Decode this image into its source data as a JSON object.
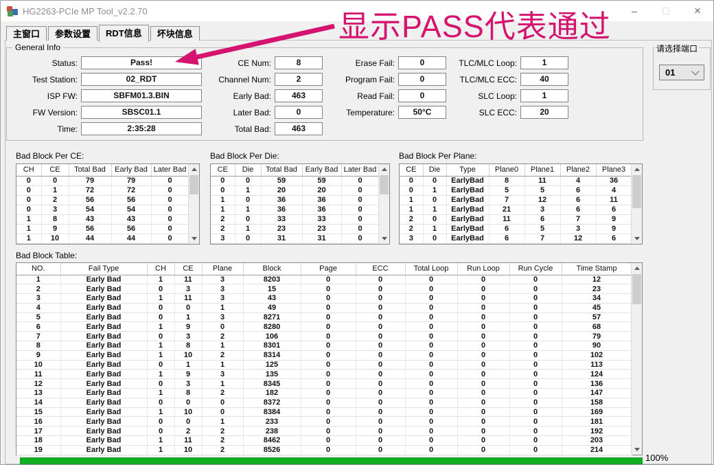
{
  "window": {
    "title": "HG2263-PCIe MP Tool_v2.2.70"
  },
  "icons": {
    "minimize": "–",
    "close": "×",
    "app": "colored-cubes",
    "combo_chevron": "chevron-down",
    "scroll_up": "triangle-up",
    "scroll_down": "triangle-down"
  },
  "tabs": {
    "items": [
      "主窗口",
      "参数设置",
      "RDT信息",
      "坏块信息"
    ],
    "active": "RDT信息"
  },
  "annotation": {
    "text": "显示PASS代表通过",
    "color": "#d4146e"
  },
  "general_info": {
    "title": "General Info",
    "col1": [
      {
        "label": "Status:",
        "value": "Pass!"
      },
      {
        "label": "Test Station:",
        "value": "02_RDT"
      },
      {
        "label": "ISP FW:",
        "value": "SBFM01.3.BIN"
      },
      {
        "label": "FW Version:",
        "value": "SBSC01.1"
      },
      {
        "label": "Time:",
        "value": "2:35:28"
      }
    ],
    "col2": [
      {
        "label": "CE Num:",
        "value": "8"
      },
      {
        "label": "Channel Num:",
        "value": "2"
      },
      {
        "label": "Early Bad:",
        "value": "463"
      },
      {
        "label": "Later Bad:",
        "value": "0"
      },
      {
        "label": "Total Bad:",
        "value": "463"
      }
    ],
    "col3": [
      {
        "label": "Erase Fail:",
        "value": "0"
      },
      {
        "label": "Program Fail:",
        "value": "0"
      },
      {
        "label": "Read Fail:",
        "value": "0"
      },
      {
        "label": "Temperature:",
        "value": "50°C"
      }
    ],
    "col4": [
      {
        "label": "TLC/MLC Loop:",
        "value": "1"
      },
      {
        "label": "TLC/MLC ECC:",
        "value": "40"
      },
      {
        "label": "SLC Loop:",
        "value": "1"
      },
      {
        "label": "SLC ECC:",
        "value": "20"
      }
    ]
  },
  "port_selector": {
    "title": "请选择端口",
    "selected": "01"
  },
  "tables": {
    "per_ce": {
      "title": "Bad Block Per CE:",
      "headers": [
        "CH",
        "CE",
        "Total Bad",
        "Early Bad",
        "Later Bad"
      ],
      "rows": [
        [
          "0",
          "0",
          "79",
          "79",
          "0"
        ],
        [
          "0",
          "1",
          "72",
          "72",
          "0"
        ],
        [
          "0",
          "2",
          "56",
          "56",
          "0"
        ],
        [
          "0",
          "3",
          "54",
          "54",
          "0"
        ],
        [
          "1",
          "8",
          "43",
          "43",
          "0"
        ],
        [
          "1",
          "9",
          "56",
          "56",
          "0"
        ],
        [
          "1",
          "10",
          "44",
          "44",
          "0"
        ]
      ]
    },
    "per_die": {
      "title": "Bad Block Per Die:",
      "headers": [
        "CE",
        "Die",
        "Total Bad",
        "Early Bad",
        "Later Bad"
      ],
      "rows": [
        [
          "0",
          "0",
          "59",
          "59",
          "0"
        ],
        [
          "0",
          "1",
          "20",
          "20",
          "0"
        ],
        [
          "1",
          "0",
          "36",
          "36",
          "0"
        ],
        [
          "1",
          "1",
          "36",
          "36",
          "0"
        ],
        [
          "2",
          "0",
          "33",
          "33",
          "0"
        ],
        [
          "2",
          "1",
          "23",
          "23",
          "0"
        ],
        [
          "3",
          "0",
          "31",
          "31",
          "0"
        ]
      ]
    },
    "per_plane": {
      "title": "Bad Block Per Plane:",
      "headers": [
        "CE",
        "Die",
        "Type",
        "Plane0",
        "Plane1",
        "Plane2",
        "Plane3"
      ],
      "rows": [
        [
          "0",
          "0",
          "EarlyBad",
          "8",
          "11",
          "4",
          "36"
        ],
        [
          "0",
          "1",
          "EarlyBad",
          "5",
          "5",
          "6",
          "4"
        ],
        [
          "1",
          "0",
          "EarlyBad",
          "7",
          "12",
          "6",
          "11"
        ],
        [
          "1",
          "1",
          "EarlyBad",
          "21",
          "3",
          "6",
          "6"
        ],
        [
          "2",
          "0",
          "EarlyBad",
          "11",
          "6",
          "7",
          "9"
        ],
        [
          "2",
          "1",
          "EarlyBad",
          "6",
          "5",
          "3",
          "9"
        ],
        [
          "3",
          "0",
          "EarlyBad",
          "6",
          "7",
          "12",
          "6"
        ]
      ]
    },
    "bad_block": {
      "title": "Bad Block Table:",
      "headers": [
        "NO.",
        "Fail Type",
        "CH",
        "CE",
        "Plane",
        "Block",
        "Page",
        "ECC",
        "Total Loop",
        "Run Loop",
        "Run Cycle",
        "Time Stamp"
      ],
      "rows": [
        [
          "1",
          "Early Bad",
          "1",
          "11",
          "3",
          "8203",
          "0",
          "0",
          "0",
          "0",
          "0",
          "12"
        ],
        [
          "2",
          "Early Bad",
          "0",
          "3",
          "3",
          "15",
          "0",
          "0",
          "0",
          "0",
          "0",
          "23"
        ],
        [
          "3",
          "Early Bad",
          "1",
          "11",
          "3",
          "43",
          "0",
          "0",
          "0",
          "0",
          "0",
          "34"
        ],
        [
          "4",
          "Early Bad",
          "0",
          "0",
          "1",
          "49",
          "0",
          "0",
          "0",
          "0",
          "0",
          "45"
        ],
        [
          "5",
          "Early Bad",
          "0",
          "1",
          "3",
          "8271",
          "0",
          "0",
          "0",
          "0",
          "0",
          "57"
        ],
        [
          "6",
          "Early Bad",
          "1",
          "9",
          "0",
          "8280",
          "0",
          "0",
          "0",
          "0",
          "0",
          "68"
        ],
        [
          "7",
          "Early Bad",
          "0",
          "3",
          "2",
          "106",
          "0",
          "0",
          "0",
          "0",
          "0",
          "79"
        ],
        [
          "8",
          "Early Bad",
          "1",
          "8",
          "1",
          "8301",
          "0",
          "0",
          "0",
          "0",
          "0",
          "90"
        ],
        [
          "9",
          "Early Bad",
          "1",
          "10",
          "2",
          "8314",
          "0",
          "0",
          "0",
          "0",
          "0",
          "102"
        ],
        [
          "10",
          "Early Bad",
          "0",
          "1",
          "1",
          "125",
          "0",
          "0",
          "0",
          "0",
          "0",
          "113"
        ],
        [
          "11",
          "Early Bad",
          "1",
          "9",
          "3",
          "135",
          "0",
          "0",
          "0",
          "0",
          "0",
          "124"
        ],
        [
          "12",
          "Early Bad",
          "0",
          "3",
          "1",
          "8345",
          "0",
          "0",
          "0",
          "0",
          "0",
          "136"
        ],
        [
          "13",
          "Early Bad",
          "1",
          "8",
          "2",
          "182",
          "0",
          "0",
          "0",
          "0",
          "0",
          "147"
        ],
        [
          "14",
          "Early Bad",
          "0",
          "0",
          "0",
          "8372",
          "0",
          "0",
          "0",
          "0",
          "0",
          "158"
        ],
        [
          "15",
          "Early Bad",
          "1",
          "10",
          "0",
          "8384",
          "0",
          "0",
          "0",
          "0",
          "0",
          "169"
        ],
        [
          "16",
          "Early Bad",
          "0",
          "0",
          "1",
          "233",
          "0",
          "0",
          "0",
          "0",
          "0",
          "181"
        ],
        [
          "17",
          "Early Bad",
          "0",
          "2",
          "2",
          "238",
          "0",
          "0",
          "0",
          "0",
          "0",
          "192"
        ],
        [
          "18",
          "Early Bad",
          "1",
          "11",
          "2",
          "8462",
          "0",
          "0",
          "0",
          "0",
          "0",
          "203"
        ],
        [
          "19",
          "Early Bad",
          "1",
          "10",
          "2",
          "8526",
          "0",
          "0",
          "0",
          "0",
          "0",
          "214"
        ]
      ]
    }
  },
  "progress": {
    "label": "100%",
    "color": "#11b022"
  }
}
